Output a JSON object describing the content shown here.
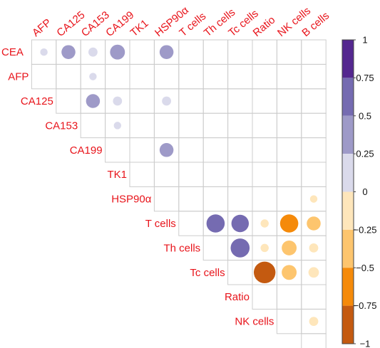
{
  "chart_data": {
    "type": "heatmap",
    "title": "",
    "variables": [
      "CEA",
      "AFP",
      "CA125",
      "CA153",
      "CA199",
      "TK1",
      "HSP90α",
      "T  cells",
      "Th  cells",
      "Tc  cells",
      "Ratio",
      "NK  cells",
      "B  cells"
    ],
    "top_labels": [
      "AFP",
      "CA125",
      "CA153",
      "CA199",
      "TK1",
      "HSP90α",
      "T  cells",
      "Th  cells",
      "Tc  cells",
      "Ratio",
      "NK  cells",
      "B  cells"
    ],
    "left_labels": [
      "CEA",
      "AFP",
      "CA125",
      "CA153",
      "CA199",
      "TK1",
      "HSP90α",
      "T  cells",
      "Th  cells",
      "Tc  cells",
      "Ratio",
      "NK  cells"
    ],
    "layout": "upper-triangle",
    "cells": [
      {
        "row": "CEA",
        "col": "AFP",
        "r": 0.1
      },
      {
        "row": "CEA",
        "col": "CA125",
        "r": 0.35
      },
      {
        "row": "CEA",
        "col": "CA153",
        "r": 0.15
      },
      {
        "row": "CEA",
        "col": "CA199",
        "r": 0.4
      },
      {
        "row": "CEA",
        "col": "HSP90α",
        "r": 0.35
      },
      {
        "row": "AFP",
        "col": "CA153",
        "r": 0.1
      },
      {
        "row": "CA125",
        "col": "CA153",
        "r": 0.35
      },
      {
        "row": "CA125",
        "col": "CA199",
        "r": 0.15
      },
      {
        "row": "CA125",
        "col": "HSP90α",
        "r": 0.15
      },
      {
        "row": "CA153",
        "col": "CA199",
        "r": 0.1
      },
      {
        "row": "CA199",
        "col": "HSP90α",
        "r": 0.35
      },
      {
        "row": "HSP90α",
        "col": "B  cells",
        "r": -0.1
      },
      {
        "row": "T  cells",
        "col": "Th  cells",
        "r": 0.6
      },
      {
        "row": "T  cells",
        "col": "Tc  cells",
        "r": 0.55
      },
      {
        "row": "T  cells",
        "col": "Ratio",
        "r": -0.12
      },
      {
        "row": "T  cells",
        "col": "NK  cells",
        "r": -0.6
      },
      {
        "row": "T  cells",
        "col": "B  cells",
        "r": -0.35
      },
      {
        "row": "Th  cells",
        "col": "Ratio",
        "r": -0.12
      },
      {
        "row": "Th  cells",
        "col": "Tc  cells",
        "r": 0.65
      },
      {
        "row": "Th  cells",
        "col": "NK  cells",
        "r": -0.4
      },
      {
        "row": "Th  cells",
        "col": "B  cells",
        "r": -0.15
      },
      {
        "row": "Tc  cells",
        "col": "Ratio",
        "r": -0.85
      },
      {
        "row": "Tc  cells",
        "col": "NK  cells",
        "r": -0.4
      },
      {
        "row": "Tc  cells",
        "col": "B  cells",
        "r": -0.2
      },
      {
        "row": "NK  cells",
        "col": "B  cells",
        "r": -0.15
      }
    ],
    "colorbar": {
      "range": [
        -1,
        1
      ],
      "ticks": [
        1,
        0.75,
        0.5,
        0.25,
        0,
        -0.25,
        -0.5,
        -0.75,
        -1
      ],
      "tick_labels": [
        "1",
        "0.75",
        "0.5",
        "0.25",
        "0",
        "−0.25",
        "−0.5",
        "−0.75",
        "−1"
      ],
      "bands": [
        {
          "from": 0.75,
          "to": 1,
          "color": "#54278f"
        },
        {
          "from": 0.5,
          "to": 0.75,
          "color": "#756bb1"
        },
        {
          "from": 0.25,
          "to": 0.5,
          "color": "#9e9ac8"
        },
        {
          "from": 0,
          "to": 0.25,
          "color": "#dadaeb"
        },
        {
          "from": -0.25,
          "to": 0,
          "color": "#fee6bb"
        },
        {
          "from": -0.5,
          "to": -0.25,
          "color": "#fdc56e"
        },
        {
          "from": -0.75,
          "to": -0.5,
          "color": "#f58a0a"
        },
        {
          "from": -1,
          "to": -0.75,
          "color": "#c45a10"
        }
      ]
    },
    "label_color": "#e8141b",
    "grid_color": "#cccccc"
  }
}
